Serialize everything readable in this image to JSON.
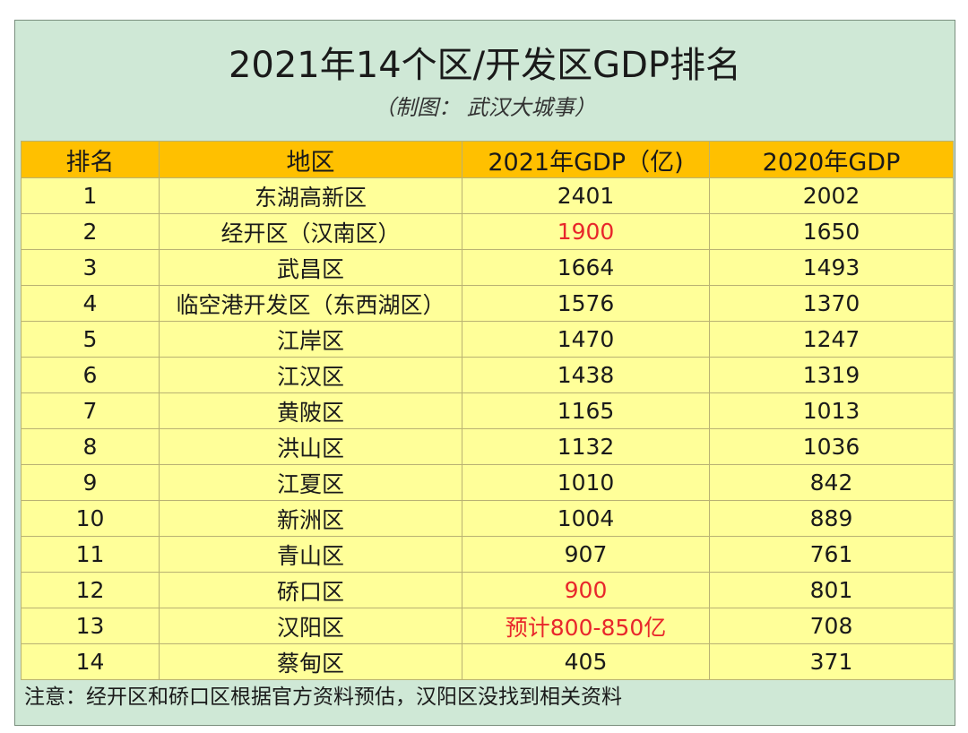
{
  "title": "2021年14个区/开发区GDP排名",
  "subtitle": "（制图： 武汉大城事）",
  "headers": [
    "排名",
    "地区",
    "2021年GDP（亿)",
    "2020年GDP"
  ],
  "rows": [
    {
      "rank": "1",
      "district": "东湖高新区",
      "gdp2021": "2401",
      "gdp2020": "2002"
    },
    {
      "rank": "2",
      "district": "经开区（汉南区）",
      "gdp2021": "1900",
      "gdp2020": "1650"
    },
    {
      "rank": "3",
      "district": "武昌区",
      "gdp2021": "1664",
      "gdp2020": "1493"
    },
    {
      "rank": "4",
      "district": "临空港开发区（东西湖区）",
      "gdp2021": "1576",
      "gdp2020": "1370"
    },
    {
      "rank": "5",
      "district": "江岸区",
      "gdp2021": "1470",
      "gdp2020": "1247"
    },
    {
      "rank": "6",
      "district": "江汉区",
      "gdp2021": "1438",
      "gdp2020": "1319"
    },
    {
      "rank": "7",
      "district": "黄陂区",
      "gdp2021": "1165",
      "gdp2020": "1013"
    },
    {
      "rank": "8",
      "district": "洪山区",
      "gdp2021": "1132",
      "gdp2020": "1036"
    },
    {
      "rank": "9",
      "district": "江夏区",
      "gdp2021": "1010",
      "gdp2020": "842"
    },
    {
      "rank": "10",
      "district": "新洲区",
      "gdp2021": "1004",
      "gdp2020": "889"
    },
    {
      "rank": "11",
      "district": "青山区",
      "gdp2021": "907",
      "gdp2020": "761"
    },
    {
      "rank": "12",
      "district": "硚口区",
      "gdp2021": "900",
      "gdp2020": "801"
    },
    {
      "rank": "13",
      "district": "汉阳区",
      "gdp2021": "预计800-850亿",
      "gdp2020": "708"
    },
    {
      "rank": "14",
      "district": "蔡甸区",
      "gdp2021": "405",
      "gdp2020": "371"
    }
  ],
  "highlight_color": "#e8262b",
  "note": "注意：经开区和硚口区根据官方资料预估，汉阳区没找到相关资料"
}
